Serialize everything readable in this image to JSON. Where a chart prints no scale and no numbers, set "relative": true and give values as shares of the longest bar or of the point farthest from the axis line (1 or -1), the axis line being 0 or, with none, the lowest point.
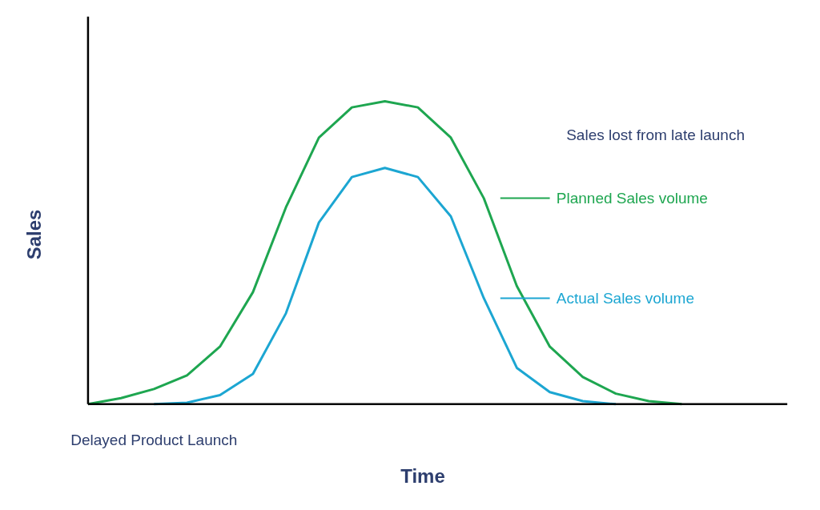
{
  "chart_data": {
    "type": "line",
    "relative": true,
    "xlabel": "Time",
    "ylabel": "Sales",
    "categories": [
      null,
      null,
      null,
      null,
      null,
      null,
      null,
      null,
      null,
      null,
      null,
      null,
      null,
      null,
      null,
      null,
      null,
      null,
      null
    ],
    "series": [
      {
        "name": "Planned Sales volume",
        "color": "#1ea650",
        "values": [
          0,
          0.02,
          0.05,
          0.095,
          0.19,
          0.37,
          0.65,
          0.88,
          0.98,
          1,
          0.98,
          0.88,
          0.68,
          0.39,
          0.19,
          0.09,
          0.035,
          0.01,
          0
        ]
      },
      {
        "name": "Actual Sales volume",
        "color": "#1ca6d2",
        "values": [
          null,
          null,
          0,
          0.005,
          0.03,
          0.1,
          0.3,
          0.6,
          0.75,
          0.78,
          0.75,
          0.62,
          0.35,
          0.12,
          0.04,
          0.01,
          0,
          null,
          null
        ]
      }
    ],
    "annotations": [
      "Sales lost from late launch",
      "Delayed Product Launch"
    ],
    "legend": "right"
  }
}
